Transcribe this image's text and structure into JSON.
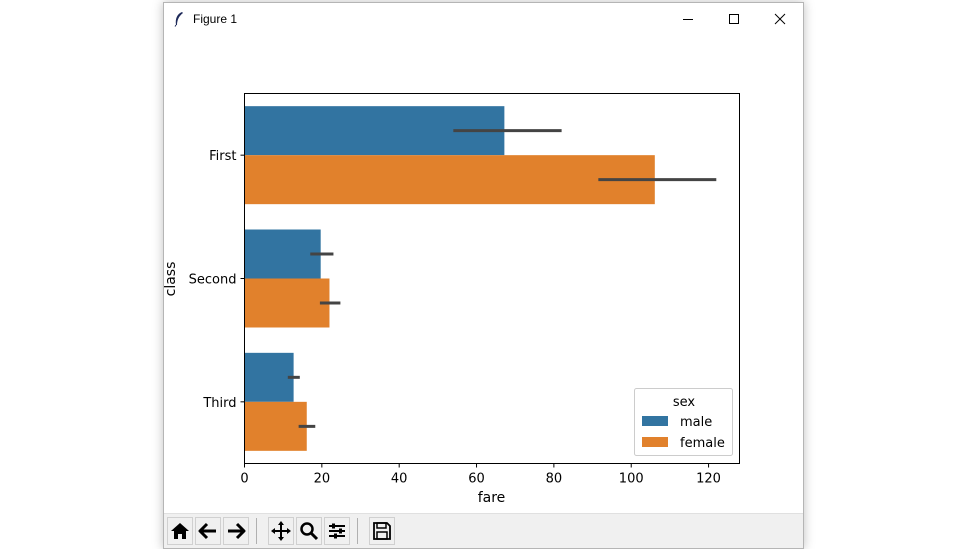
{
  "window": {
    "title": "Figure 1",
    "icons": {
      "app": "feather-icon",
      "minimize": "minimize-icon",
      "maximize": "maximize-icon",
      "close": "close-icon"
    }
  },
  "toolbar": {
    "buttons": [
      {
        "name": "home-button",
        "icon": "home-icon"
      },
      {
        "name": "back-button",
        "icon": "arrow-left-icon"
      },
      {
        "name": "forward-button",
        "icon": "arrow-right-icon"
      },
      {
        "name": "pan-button",
        "icon": "move-icon"
      },
      {
        "name": "zoom-button",
        "icon": "magnifier-icon"
      },
      {
        "name": "configure-subplots-button",
        "icon": "sliders-icon"
      },
      {
        "name": "save-button",
        "icon": "floppy-disk-icon"
      }
    ]
  },
  "chart_data": {
    "type": "bar",
    "orientation": "horizontal",
    "categories": [
      "First",
      "Second",
      "Third"
    ],
    "series": [
      {
        "name": "male",
        "color": "#3274a1",
        "values": [
          67.2,
          19.7,
          12.7
        ],
        "ci_low": [
          54,
          17,
          11.2
        ],
        "ci_high": [
          82,
          23,
          14.3
        ]
      },
      {
        "name": "female",
        "color": "#e1812c",
        "values": [
          106.1,
          21.97,
          16.1
        ],
        "ci_low": [
          91.5,
          19.5,
          14
        ],
        "ci_high": [
          122,
          24.8,
          18.3
        ]
      }
    ],
    "xlabel": "fare",
    "ylabel": "class",
    "xlim": [
      0,
      128
    ],
    "xticks": [
      0,
      20,
      40,
      60,
      80,
      100,
      120
    ],
    "grid": false,
    "legend": {
      "title": "sex",
      "position": "bottom-right"
    }
  }
}
